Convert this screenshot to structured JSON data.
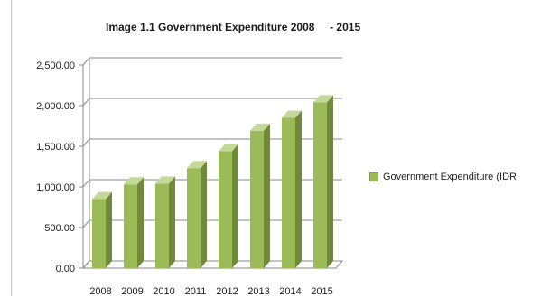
{
  "chart_data": {
    "type": "bar",
    "title": "Image 1.1 Government Expenditure 2008     - 2015",
    "categories": [
      "2008",
      "2009",
      "2010",
      "2011",
      "2012",
      "2013",
      "2014",
      "2015"
    ],
    "series": [
      {
        "name": "Government Expenditure (IDR",
        "values": [
          850,
          1030,
          1040,
          1230,
          1440,
          1690,
          1850,
          2040
        ]
      }
    ],
    "ylim": [
      0,
      2500
    ],
    "yticks": [
      0,
      500,
      1000,
      1500,
      2000,
      2500
    ],
    "ytick_labels": [
      "0.00",
      "500.00",
      "1,000.00",
      "1,500.00",
      "2,000.00",
      "2,500.00"
    ],
    "grid": true,
    "legend_position": "right",
    "colors": {
      "bar_front": "#9bbb59",
      "bar_side": "#6f8a39",
      "bar_top": "#c4d89a",
      "grid": "#8a8a8a"
    }
  }
}
